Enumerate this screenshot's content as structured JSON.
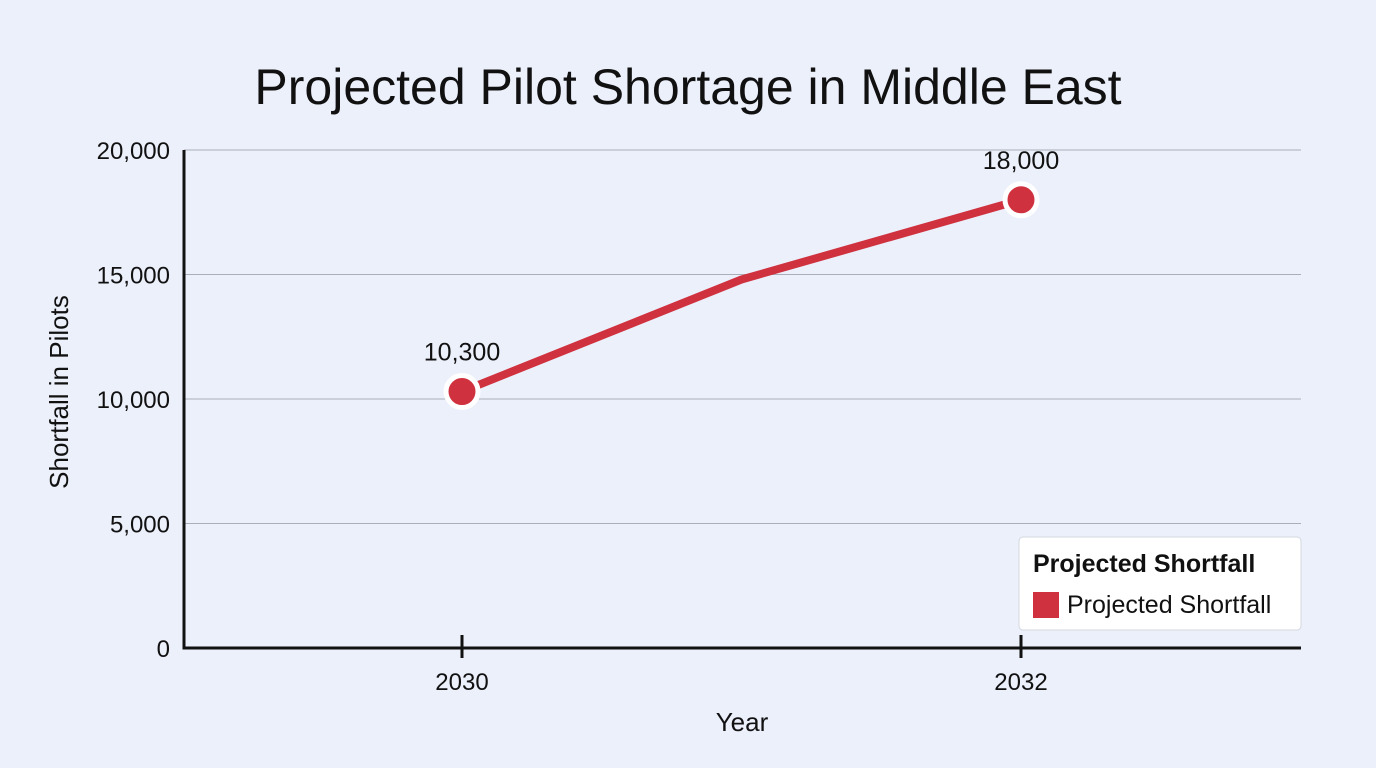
{
  "chart_data": {
    "type": "line",
    "title": "Projected Pilot Shortage in Middle East",
    "xlabel": "Year",
    "ylabel": "Shortfall in Pilots",
    "x": [
      "2030",
      "2031",
      "2032"
    ],
    "x_ticks": [
      "2030",
      "2032"
    ],
    "ylim": [
      0,
      20000
    ],
    "y_ticks": [
      0,
      5000,
      10000,
      15000,
      20000
    ],
    "y_tick_labels": [
      "0",
      "5,000",
      "10,000",
      "15,000",
      "20,000"
    ],
    "grid": true,
    "series": [
      {
        "name": "Projected Shortfall",
        "color": "#d0313e",
        "x": [
          "2030",
          "2031",
          "2032"
        ],
        "values": [
          10300,
          14800,
          18000
        ],
        "labeled_points": [
          {
            "x": "2030",
            "value": 10300,
            "label": "10,300"
          },
          {
            "x": "2032",
            "value": 18000,
            "label": "18,000"
          }
        ]
      }
    ],
    "legend": {
      "title": "Projected Shortfall",
      "placement": "bottom-right",
      "entries": [
        "Projected Shortfall"
      ]
    }
  }
}
